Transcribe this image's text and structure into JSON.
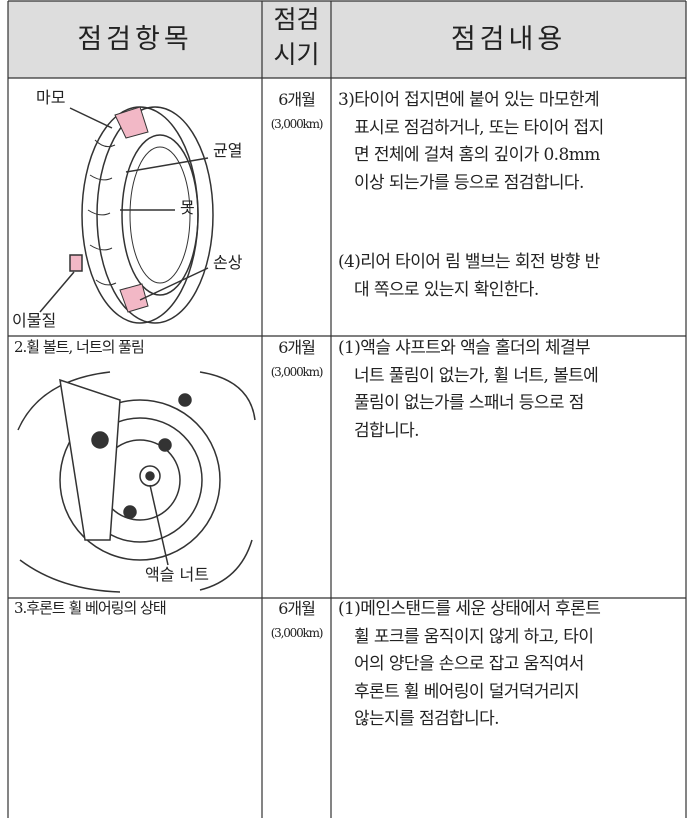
{
  "table": {
    "header": [
      "점검항목",
      [
        "점검",
        "시기"
      ],
      "점검내용"
    ],
    "rows": [
      {
        "labels": [
          "마모",
          "균열",
          "못",
          "손상",
          "이물질"
        ],
        "period": [
          "6개월",
          "(3,000km)"
        ],
        "content": [
          [
            "3)타이어 접지면에 붙어 있는 마모한계",
            "표시로 점검하거나, 또는 타이어 접지",
            "면 전체에 걸쳐 홈의 깊이가 0.8mm",
            "이상 되는가를 등으로 점검합니다."
          ],
          [
            "(4)리어 타이어 림 밸브는 회전 방향 반",
            "대 쪽으로 있는지 확인한다."
          ]
        ]
      },
      {
        "item": "2.휠 볼트, 너트의 풀림",
        "labels": [
          "액슬 너트"
        ],
        "period": [
          "6개월",
          "(3,000km)"
        ],
        "content": [
          [
            "(1)액슬 샤프트와 액슬 홀더의 체결부",
            "너트 풀림이 없는가, 휠  너트, 볼트에",
            "풀림이 없는가를 스패너  등으로 점",
            "검합니다."
          ]
        ]
      },
      {
        "item": "3.후론트 휠 베어링의 상태",
        "period": [
          "6개월",
          "(3,000km)"
        ],
        "content": [
          [
            "(1)메인스탠드를 세운 상태에서 후론트",
            "휠 포크를 움직이지  않게 하고, 타이",
            "어의 양단을 손으로 잡고 움직여서",
            "후론트 휠 베어링이 덜거덕거리지",
            "않는지를 점검합니다."
          ]
        ]
      }
    ]
  }
}
